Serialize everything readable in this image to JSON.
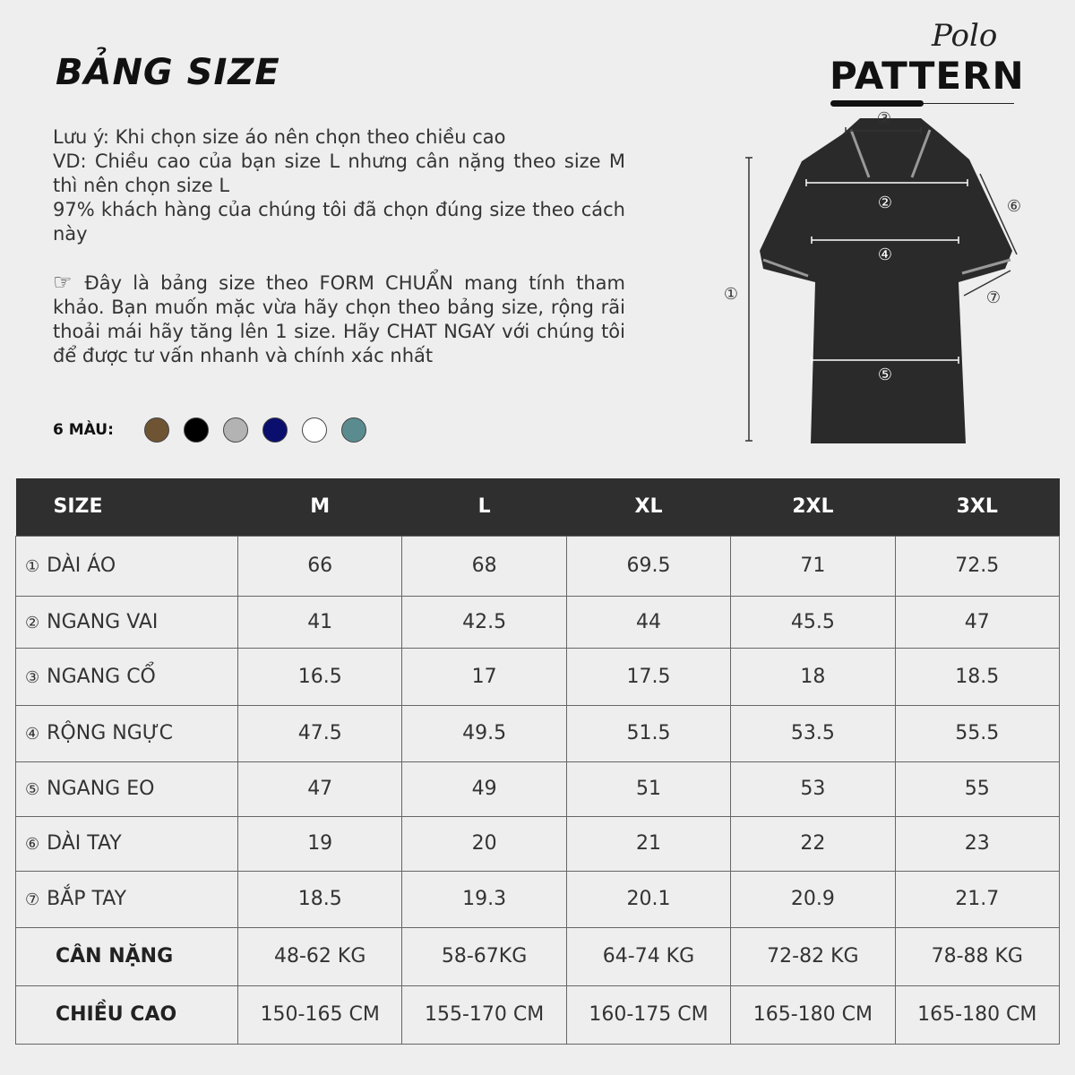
{
  "header": {
    "title": "BẢNG SIZE",
    "brand_script": "Polo",
    "brand": "PATTERN"
  },
  "notes": [
    "Lưu ý: Khi chọn size áo nên chọn theo chiều cao",
    "VD: Chiều cao của bạn size L nhưng cân nặng theo size M thì nên chọn size L",
    "97% khách hàng của chúng tôi đã chọn đúng size theo cách này"
  ],
  "tip": {
    "icon": "pointing-hand-icon",
    "text": "Đây là bảng size theo FORM CHUẨN mang tính tham khảo. Bạn muốn mặc vừa hãy chọn theo bảng size, rộng rãi thoải mái hãy tăng lên 1 size. Hãy CHAT NGAY với chúng tôi để được tư vấn nhanh và chính xác nhất"
  },
  "colors": {
    "label": "6 MÀU:",
    "swatches": [
      "#6e5433",
      "#000000",
      "#b3b3b3",
      "#0a0f6e",
      "#ffffff",
      "#5a8b8f"
    ]
  },
  "diagram": {
    "markers": [
      "①",
      "②",
      "③",
      "④",
      "⑤",
      "⑥",
      "⑦"
    ]
  },
  "table": {
    "headers": [
      "SIZE",
      "M",
      "L",
      "XL",
      "2XL",
      "3XL"
    ],
    "rows": [
      {
        "num": "①",
        "label": "DÀI ÁO",
        "values": [
          "66",
          "68",
          "69.5",
          "71",
          "72.5"
        ]
      },
      {
        "num": "②",
        "label": "NGANG VAI",
        "values": [
          "41",
          "42.5",
          "44",
          "45.5",
          "47"
        ]
      },
      {
        "num": "③",
        "label": "NGANG CỔ",
        "values": [
          "16.5",
          "17",
          "17.5",
          "18",
          "18.5"
        ]
      },
      {
        "num": "④",
        "label": "RỘNG NGỰC",
        "values": [
          "47.5",
          "49.5",
          "51.5",
          "53.5",
          "55.5"
        ]
      },
      {
        "num": "⑤",
        "label": "NGANG EO",
        "values": [
          "47",
          "49",
          "51",
          "53",
          "55"
        ]
      },
      {
        "num": "⑥",
        "label": "DÀI TAY",
        "values": [
          "19",
          "20",
          "21",
          "22",
          "23"
        ]
      },
      {
        "num": "⑦",
        "label": "BẮP TAY",
        "values": [
          "18.5",
          "19.3",
          "20.1",
          "20.9",
          "21.7"
        ]
      },
      {
        "num": "",
        "label": "CÂN NẶNG",
        "values": [
          "48-62 KG",
          "58-67KG",
          "64-74 KG",
          "72-82 KG",
          "78-88 KG"
        ]
      },
      {
        "num": "",
        "label": "CHIỀU CAO",
        "values": [
          "150-165 CM",
          "155-170 CM",
          "160-175 CM",
          "165-180 CM",
          "165-180 CM"
        ]
      }
    ]
  }
}
